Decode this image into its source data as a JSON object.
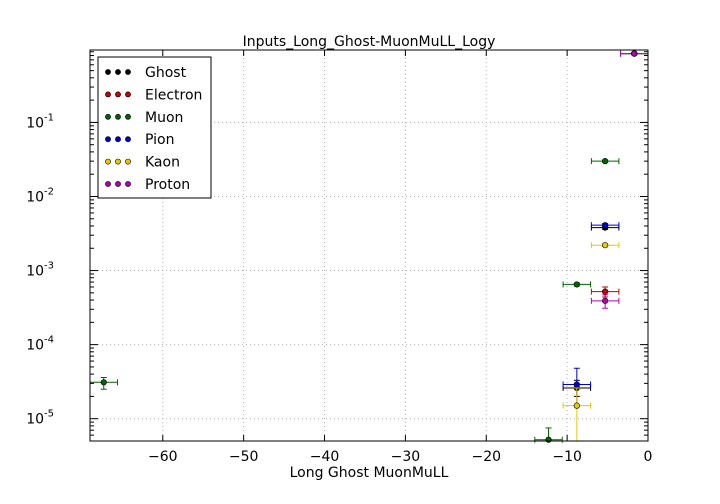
{
  "chart_data": {
    "type": "scatter",
    "title": "Inputs_Long_Ghost-MuonMuLL_Logy",
    "xlabel": "Long Ghost MuonMuLL",
    "ylabel": "",
    "xlim": [
      -69,
      0
    ],
    "ylim": [
      5e-06,
      0.95
    ],
    "yscale": "log",
    "grid": true,
    "legend_position": "top-left",
    "x_ticks": [
      {
        "value": -60,
        "label": "−60"
      },
      {
        "value": -50,
        "label": "−50"
      },
      {
        "value": -40,
        "label": "−40"
      },
      {
        "value": -30,
        "label": "−30"
      },
      {
        "value": -20,
        "label": "−20"
      },
      {
        "value": -10,
        "label": "−10"
      },
      {
        "value": 0,
        "label": "0"
      }
    ],
    "y_ticks": [
      {
        "value": 1e-05,
        "base": "10",
        "exp": "-5"
      },
      {
        "value": 0.0001,
        "base": "10",
        "exp": "-4"
      },
      {
        "value": 0.001,
        "base": "10",
        "exp": "-3"
      },
      {
        "value": 0.01,
        "base": "10",
        "exp": "-2"
      },
      {
        "value": 0.1,
        "base": "10",
        "exp": "-1"
      }
    ],
    "series": [
      {
        "name": "Ghost",
        "color": "#000000",
        "points": [
          {
            "x": -8.8,
            "y": 2.6e-05,
            "xerr": 1.7,
            "ylo": 2e-05,
            "yhi": 3.3e-05
          },
          {
            "x": -5.3,
            "y": 0.0038,
            "xerr": 1.7,
            "ylo": 0.0036,
            "yhi": 0.004
          },
          {
            "x": -1.7,
            "y": 0.85,
            "xerr": 1.7,
            "ylo": 0.84,
            "yhi": 0.86
          }
        ]
      },
      {
        "name": "Electron",
        "color": "#cc0000",
        "points": [
          {
            "x": -5.3,
            "y": 0.00052,
            "xerr": 1.7,
            "ylo": 0.00044,
            "yhi": 0.0006
          },
          {
            "x": -1.7,
            "y": 0.85,
            "xerr": 1.7,
            "ylo": 0.84,
            "yhi": 0.86
          }
        ]
      },
      {
        "name": "Muon",
        "color": "#006400",
        "points": [
          {
            "x": -67.3,
            "y": 3.1e-05,
            "xerr": 1.7,
            "ylo": 2.5e-05,
            "yhi": 3.6e-05
          },
          {
            "x": -12.3,
            "y": 5.2e-06,
            "xerr": 1.7,
            "ylo": 2.5e-06,
            "yhi": 7.5e-06
          },
          {
            "x": -8.8,
            "y": 0.00065,
            "xerr": 1.7,
            "ylo": 0.00062,
            "yhi": 0.00068
          },
          {
            "x": -5.3,
            "y": 0.03,
            "xerr": 1.7,
            "ylo": 0.029,
            "yhi": 0.031
          },
          {
            "x": -1.7,
            "y": 0.85,
            "xerr": 1.7,
            "ylo": 0.84,
            "yhi": 0.86
          }
        ]
      },
      {
        "name": "Pion",
        "color": "#0000cc",
        "points": [
          {
            "x": -8.8,
            "y": 2.9e-05,
            "xerr": 1.7,
            "ylo": 1.5e-05,
            "yhi": 4.8e-05
          },
          {
            "x": -5.3,
            "y": 0.0041,
            "xerr": 1.7,
            "ylo": 0.0039,
            "yhi": 0.0043
          },
          {
            "x": -1.7,
            "y": 0.85,
            "xerr": 1.7,
            "ylo": 0.84,
            "yhi": 0.86
          }
        ]
      },
      {
        "name": "Kaon",
        "color": "#e8c800",
        "points": [
          {
            "x": -8.8,
            "y": 1.5e-05,
            "xerr": 1.7,
            "ylo": 5e-06,
            "yhi": 2.6e-05
          },
          {
            "x": -5.3,
            "y": 0.0022,
            "xerr": 1.7,
            "ylo": 0.0021,
            "yhi": 0.0023
          },
          {
            "x": -1.7,
            "y": 0.85,
            "xerr": 1.7,
            "ylo": 0.84,
            "yhi": 0.86
          }
        ]
      },
      {
        "name": "Proton",
        "color": "#b000b0",
        "points": [
          {
            "x": -5.3,
            "y": 0.00039,
            "xerr": 1.7,
            "ylo": 0.00031,
            "yhi": 0.00047
          },
          {
            "x": -1.7,
            "y": 0.85,
            "xerr": 1.7,
            "ylo": 0.84,
            "yhi": 0.86
          }
        ]
      }
    ]
  }
}
